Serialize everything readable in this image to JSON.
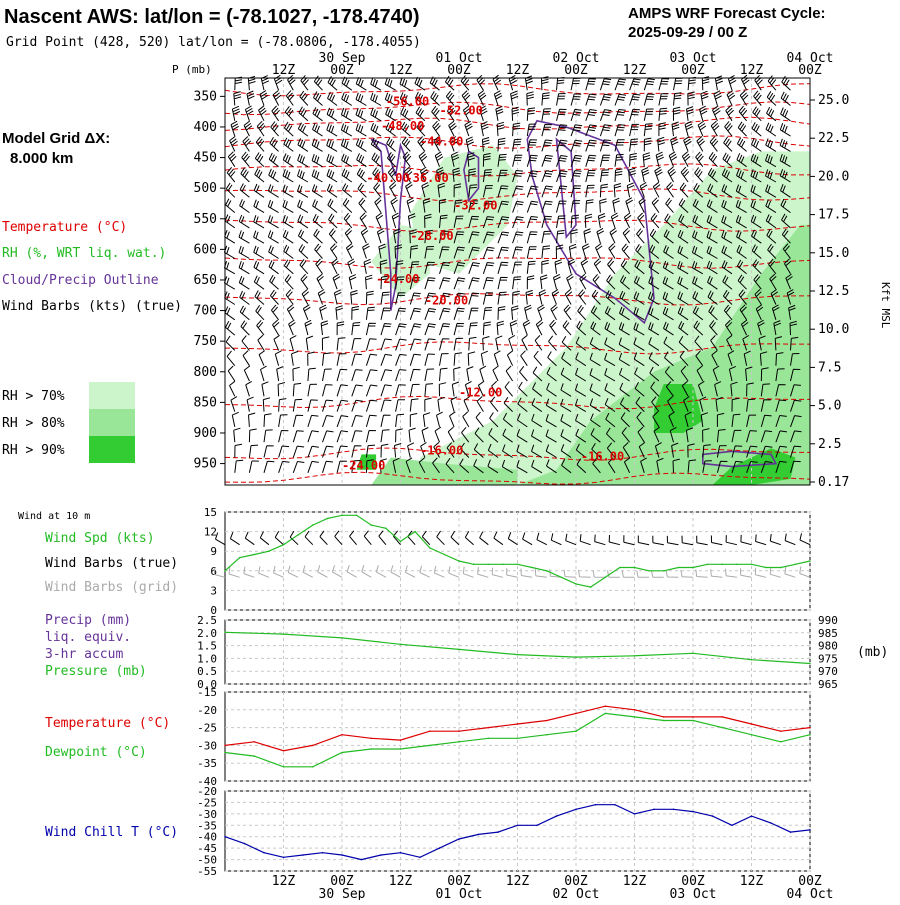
{
  "header": {
    "title": "Nascent AWS:  lat/lon = (-78.1027, -178.4740)",
    "subtitle": "Grid Point (428, 520) lat/lon = (-78.0806, -178.4055)",
    "forecast_title": "AMPS WRF Forecast Cycle:",
    "forecast_cycle": "2025-09-29 / 00  Z"
  },
  "time_axis": {
    "hour_labels": [
      "12Z",
      "00Z",
      "12Z",
      "00Z",
      "12Z",
      "00Z",
      "12Z",
      "00Z",
      "12Z",
      "00Z"
    ],
    "day_labels": [
      "30 Sep",
      "01 Oct",
      "02 Oct",
      "03 Oct",
      "04 Oct"
    ]
  },
  "left_panel": {
    "model_grid_label": "Model Grid ΔX:",
    "model_grid_value": "8.000 km",
    "legend_temperature": "Temperature (°C)",
    "legend_rh": "RH (%, WRT liq. wat.)",
    "legend_cloud": "Cloud/Precip Outline",
    "legend_wind": "Wind Barbs (kts) (true)",
    "rh_levels": [
      {
        "label": "RH > 70%",
        "color": "#ccf5cc"
      },
      {
        "label": "RH > 80%",
        "color": "#99e699"
      },
      {
        "label": "RH > 90%",
        "color": "#33cc33"
      }
    ]
  },
  "colors": {
    "temperature": "#dd0000",
    "rh": "#22bb22",
    "cloud": "#663399",
    "wind": "#000000",
    "grid_barb": "#aaaaaa",
    "windchill": "#0000aa"
  },
  "chart_data": [
    {
      "type": "heatmap",
      "panel": "upper_air",
      "y_label": "P (mb)",
      "right_axis_label": "Kft MSL",
      "pressure_ticks": [
        350,
        400,
        450,
        500,
        550,
        600,
        650,
        700,
        750,
        800,
        850,
        900,
        950
      ],
      "altitude_ticks": [
        "25.0",
        "22.5",
        "20.0",
        "17.5",
        "15.0",
        "12.5",
        "10.0",
        "7.5",
        "5.0",
        "2.5",
        "0.17"
      ],
      "x_range_hours": [
        0,
        120
      ],
      "y_range_mb": [
        320,
        985
      ],
      "temperature_contour_labels": [
        {
          "text": "-56.00",
          "hour": 33,
          "mb": 365
        },
        {
          "text": "-52.00",
          "hour": 44,
          "mb": 380
        },
        {
          "text": "-48.00",
          "hour": 32,
          "mb": 405
        },
        {
          "text": "-44.00",
          "hour": 40,
          "mb": 430
        },
        {
          "text": "-40.00",
          "hour": 29,
          "mb": 490
        },
        {
          "text": "-36.00",
          "hour": 37,
          "mb": 490
        },
        {
          "text": "-32.00",
          "hour": 47,
          "mb": 535
        },
        {
          "text": "-28.00",
          "hour": 38,
          "mb": 585
        },
        {
          "text": "-24.00",
          "hour": 31,
          "mb": 655
        },
        {
          "text": "-20.00",
          "hour": 41,
          "mb": 690
        },
        {
          "text": "-12.00",
          "hour": 48,
          "mb": 840
        },
        {
          "text": "-16.00",
          "hour": 40,
          "mb": 935
        },
        {
          "text": "-24.00",
          "hour": 24,
          "mb": 960
        },
        {
          "text": "-16.00",
          "hour": 73,
          "mb": 945
        }
      ]
    },
    {
      "type": "line",
      "panel": "wind",
      "label": "Wind at 10 m",
      "legend": [
        "Wind Spd (kts)",
        "Wind Barbs (true)",
        "Wind Barbs (grid)"
      ],
      "y_ticks": [
        0,
        3,
        6,
        9,
        12,
        15
      ],
      "ylim": [
        0,
        15
      ],
      "x": [
        0,
        3,
        6,
        9,
        12,
        15,
        18,
        21,
        24,
        27,
        30,
        33,
        36,
        39,
        42,
        45,
        48,
        51,
        54,
        57,
        60,
        63,
        66,
        69,
        72,
        75,
        78,
        81,
        84,
        87,
        90,
        93,
        96,
        99,
        102,
        105,
        108,
        111,
        114,
        117,
        120
      ],
      "series": [
        {
          "name": "Wind Spd (kts)",
          "color": "#22bb22",
          "values": [
            6,
            8,
            8.5,
            9,
            10,
            11.5,
            13,
            14,
            14.5,
            14.5,
            13,
            12.5,
            10.5,
            12,
            9.5,
            8.5,
            7.5,
            7,
            7,
            7,
            7,
            6.5,
            6,
            5,
            4,
            3.5,
            5,
            6.5,
            6.5,
            6,
            6,
            6.5,
            6.5,
            7,
            7,
            7,
            7,
            6.5,
            6.5,
            7,
            7.5
          ]
        }
      ]
    },
    {
      "type": "line",
      "panel": "precip_pressure",
      "legend": [
        "Precip (mm)",
        "liq. equiv.",
        "3-hr accum",
        "Pressure (mb)"
      ],
      "left_ticks": [
        "2.5",
        "2.0",
        "1.5",
        "1.0",
        "0.5",
        "0.0"
      ],
      "right_ticks": [
        "990",
        "985",
        "980",
        "975",
        "970",
        "965"
      ],
      "right_axis_label": "(mb)",
      "ylim_mb": [
        965,
        990
      ],
      "x": [
        0,
        12,
        24,
        36,
        48,
        60,
        72,
        84,
        96,
        108,
        120
      ],
      "series": [
        {
          "name": "Pressure (mb)",
          "color": "#22bb22",
          "values": [
            985.2,
            984.5,
            983.0,
            980.5,
            978.5,
            976.5,
            975.5,
            976.0,
            977.0,
            974.5,
            973.0
          ]
        }
      ]
    },
    {
      "type": "line",
      "panel": "temperature",
      "legend": [
        "Temperature (°C)",
        "Dewpoint (°C)"
      ],
      "y_ticks": [
        -15,
        -20,
        -25,
        -30,
        -35,
        -40
      ],
      "ylim": [
        -40,
        -15
      ],
      "x": [
        0,
        6,
        12,
        18,
        24,
        30,
        36,
        42,
        48,
        54,
        60,
        66,
        72,
        78,
        84,
        90,
        96,
        102,
        108,
        114,
        120
      ],
      "series": [
        {
          "name": "Temperature (°C)",
          "color": "#dd0000",
          "values": [
            -30,
            -29,
            -31.5,
            -30,
            -27,
            -28,
            -28.5,
            -26,
            -26,
            -25,
            -24,
            -23,
            -21,
            -19,
            -20,
            -22,
            -22,
            -22,
            -24,
            -26,
            -25
          ]
        },
        {
          "name": "Dewpoint (°C)",
          "color": "#22bb22",
          "values": [
            -32,
            -33,
            -36,
            -36,
            -32,
            -31,
            -31,
            -30,
            -29,
            -28,
            -28,
            -27,
            -26,
            -21,
            -22,
            -23,
            -23,
            -25,
            -27,
            -29,
            -27
          ]
        }
      ]
    },
    {
      "type": "line",
      "panel": "windchill",
      "legend": [
        "Wind Chill T (°C)"
      ],
      "y_ticks": [
        -20,
        -25,
        -30,
        -35,
        -40,
        -45,
        -50,
        -55
      ],
      "ylim": [
        -55,
        -20
      ],
      "x": [
        0,
        4,
        8,
        12,
        16,
        20,
        24,
        28,
        32,
        36,
        40,
        44,
        48,
        52,
        56,
        60,
        64,
        68,
        72,
        76,
        80,
        84,
        88,
        92,
        96,
        100,
        104,
        108,
        112,
        116,
        120
      ],
      "series": [
        {
          "name": "Wind Chill T (°C)",
          "color": "#0000aa",
          "values": [
            -40,
            -43,
            -47,
            -49,
            -48,
            -47,
            -48,
            -50,
            -48,
            -47,
            -49,
            -45,
            -41,
            -39,
            -38,
            -35,
            -35,
            -31,
            -28,
            -26,
            -26,
            -30,
            -28,
            -28,
            -29,
            -31,
            -35,
            -31,
            -34,
            -38,
            -37
          ]
        }
      ]
    }
  ]
}
